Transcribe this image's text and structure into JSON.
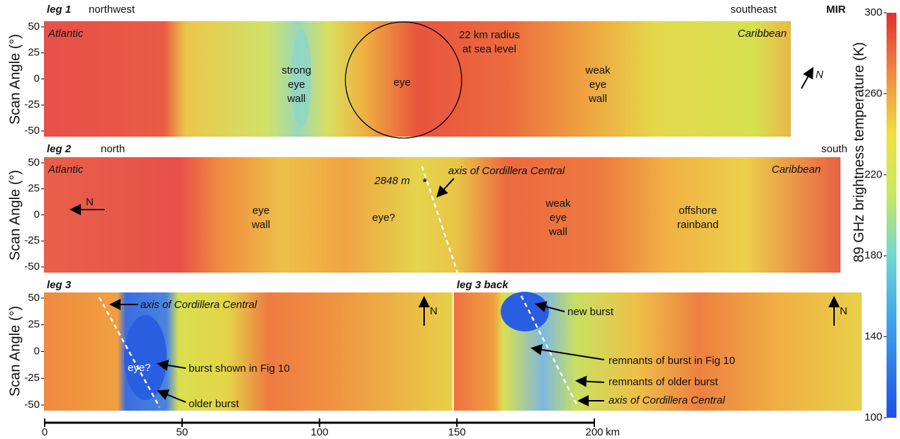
{
  "figure": {
    "y_axis_label": "Scan Angle (°)",
    "colorbar": {
      "label": "89 GHz brightness temperature (K)",
      "range": [
        100,
        300
      ],
      "ticks": [
        100,
        140,
        180,
        220,
        260,
        300
      ]
    },
    "scale_bar": {
      "ticks": [
        0,
        50,
        100,
        150,
        200
      ],
      "unit": "km"
    },
    "panels": [
      {
        "label": "leg 1",
        "yticks": [
          50,
          25,
          0,
          -25,
          -50
        ],
        "annotations": [
          "northwest",
          "southeast",
          "MIR",
          "Atlantic",
          "Caribbean",
          "22 km radius",
          "at sea level",
          "strong",
          "eye",
          "wall",
          "eye",
          "weak",
          "eye",
          "wall",
          "N"
        ]
      },
      {
        "label": "leg 2",
        "yticks": [
          50,
          25,
          0,
          -25,
          -50
        ],
        "annotations": [
          "north",
          "south",
          "Atlantic",
          "Caribbean",
          "2848 m",
          "*",
          "axis of Cordillera Central",
          "N",
          "eye",
          "wall",
          "eye?",
          "weak",
          "eye",
          "wall",
          "offshore",
          "rainband"
        ]
      },
      {
        "label": "leg 3",
        "yticks": [
          50,
          25,
          0,
          -25,
          -50
        ],
        "annotations": [
          "axis of Cordillera Central",
          "N",
          "burst shown in Fig 10",
          "eye?",
          "older burst"
        ]
      },
      {
        "label": "leg 3 back",
        "annotations": [
          "new burst",
          "N",
          "remnants of burst in Fig 10",
          "remnants of older burst",
          "axis of Cordillera Central"
        ]
      }
    ]
  }
}
